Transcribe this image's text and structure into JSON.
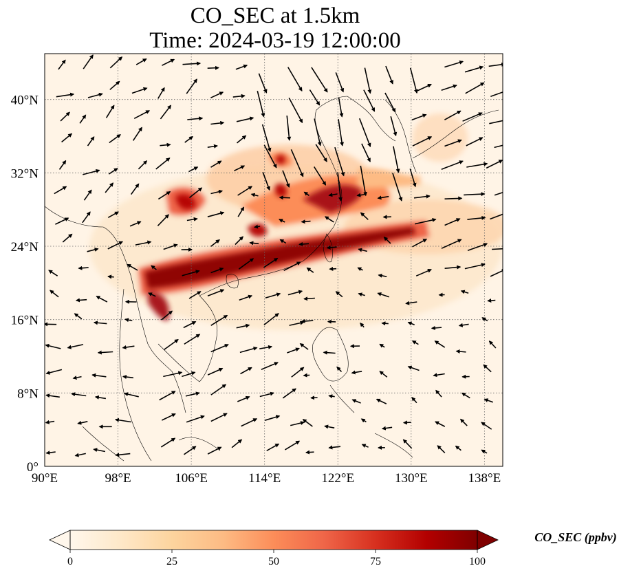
{
  "title": {
    "line1": "CO_SEC at 1.5km",
    "line2": "Time: 2024-03-19 12:00:00"
  },
  "map": {
    "extent": {
      "lon": [
        90,
        140
      ],
      "lat": [
        0,
        45
      ]
    },
    "lon_ticks": [
      "90°E",
      "98°E",
      "106°E",
      "114°E",
      "122°E",
      "130°E",
      "138°E"
    ],
    "lon_tick_values": [
      90,
      98,
      106,
      114,
      122,
      130,
      138
    ],
    "lat_ticks": [
      "0°",
      "8°N",
      "16°N",
      "24°N",
      "32°N",
      "40°N"
    ],
    "lat_tick_values": [
      0,
      8,
      16,
      24,
      32,
      40
    ],
    "gridlines": true,
    "overlay": "wind vectors",
    "field_plumes": [
      {
        "lon": [
          97,
          106
        ],
        "lat": [
          16,
          23
        ],
        "level": 90
      },
      {
        "lon": [
          104,
          123
        ],
        "lat": [
          20,
          26
        ],
        "level": 95
      },
      {
        "lon": [
          111,
          132
        ],
        "lat": [
          22,
          27
        ],
        "level": 85
      },
      {
        "lon": [
          112,
          126
        ],
        "lat": [
          26,
          31
        ],
        "level": 80
      },
      {
        "lon": [
          103,
          110
        ],
        "lat": [
          26,
          30
        ],
        "level": 70
      },
      {
        "lon": [
          115,
          132
        ],
        "lat": [
          26,
          33
        ],
        "level": 45
      }
    ]
  },
  "colorbar": {
    "label": "CO_SEC (ppbv)",
    "min": 0,
    "max": 100,
    "ticks": [
      "0",
      "25",
      "50",
      "75",
      "100"
    ],
    "tick_values": [
      0,
      25,
      50,
      75,
      100
    ],
    "colormap": "OrRd",
    "extend": "both",
    "colors": [
      "#fff7ec",
      "#fee8c8",
      "#fdd49e",
      "#fdbb84",
      "#fc8d59",
      "#ef6548",
      "#d7301f",
      "#b30000",
      "#7f0000"
    ]
  }
}
